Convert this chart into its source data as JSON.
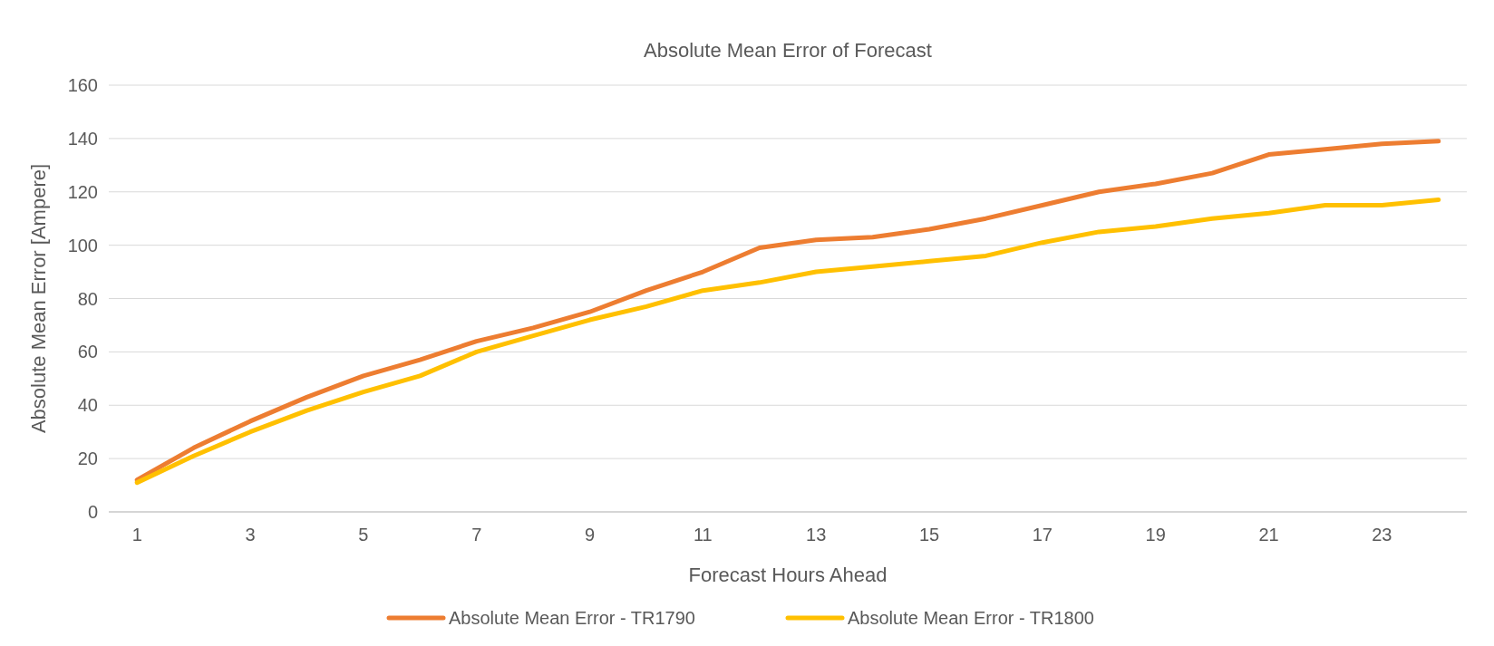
{
  "chart_data": {
    "type": "line",
    "title": "Absolute Mean Error of Forecast",
    "xlabel": "Forecast Hours Ahead",
    "ylabel": "Absolute Mean Error [Ampere]",
    "x": [
      1,
      2,
      3,
      4,
      5,
      6,
      7,
      8,
      9,
      10,
      11,
      12,
      13,
      14,
      15,
      16,
      17,
      18,
      19,
      20,
      21,
      22,
      23,
      24
    ],
    "xlim": [
      0.5,
      24.5
    ],
    "xticks": [
      1,
      3,
      5,
      7,
      9,
      11,
      13,
      15,
      17,
      19,
      21,
      23
    ],
    "series": [
      {
        "name": "Absolute Mean Error - TR1790",
        "color": "#ed7d31",
        "values": [
          12,
          24,
          34,
          43,
          51,
          57,
          64,
          69,
          75,
          83,
          90,
          99,
          102,
          103,
          106,
          110,
          115,
          120,
          123,
          127,
          134,
          136,
          138,
          139
        ]
      },
      {
        "name": "Absolute Mean Error - TR1800",
        "color": "#ffc000",
        "values": [
          11,
          21,
          30,
          38,
          45,
          51,
          60,
          66,
          72,
          77,
          83,
          86,
          90,
          92,
          94,
          96,
          101,
          105,
          107,
          110,
          112,
          115,
          115,
          117
        ]
      }
    ],
    "ylim": [
      0,
      160
    ],
    "yticks": [
      0,
      20,
      40,
      60,
      80,
      100,
      120,
      140,
      160
    ],
    "grid": "y",
    "legend": "bottom",
    "marker": "none",
    "line_style": "solid"
  }
}
